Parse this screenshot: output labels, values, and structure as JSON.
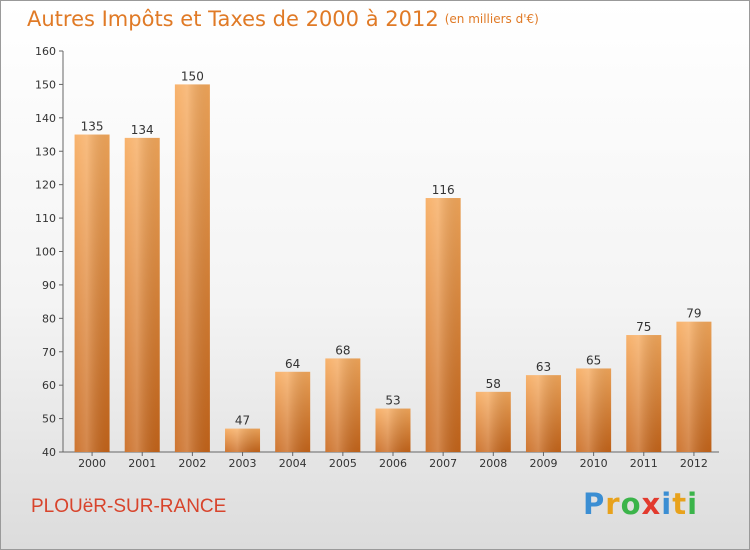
{
  "title": "Autres Impôts et Taxes de 2000 à 2012",
  "title_unit": "(en milliers d'€)",
  "place": "PLOUëR-SUR-RANCE",
  "logo": {
    "letters": [
      "P",
      "r",
      "o",
      "x",
      "i",
      "t",
      "i"
    ],
    "colors": [
      "#3b8ed3",
      "#e8a21c",
      "#3bb44a",
      "#e23a2e",
      "#3b8ed3",
      "#e8a21c",
      "#3bb44a"
    ]
  },
  "colors": {
    "bar_light": "#f7aa5c",
    "bar_dark": "#c8661a",
    "title": "#e07a26",
    "place": "#d8442c"
  },
  "chart_data": {
    "type": "bar",
    "categories": [
      "2000",
      "2001",
      "2002",
      "2003",
      "2004",
      "2005",
      "2006",
      "2007",
      "2008",
      "2009",
      "2010",
      "2011",
      "2012"
    ],
    "values": [
      135,
      134,
      150,
      47,
      64,
      68,
      53,
      116,
      58,
      63,
      65,
      75,
      79
    ],
    "title": "Autres Impôts et Taxes de 2000 à 2012",
    "xlabel": "",
    "ylabel": "",
    "ylim": [
      40,
      160
    ],
    "yticks": [
      40,
      50,
      60,
      70,
      80,
      90,
      100,
      110,
      120,
      130,
      140,
      150,
      160
    ],
    "grid": false,
    "data_labels": true
  }
}
